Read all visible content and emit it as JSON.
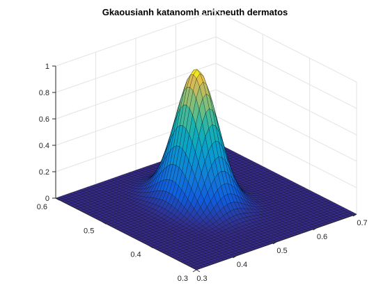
{
  "chart_data": {
    "type": "surface",
    "title": "Gkaousianh katanomh anixneuth dermatos",
    "xlabel": "",
    "ylabel": "",
    "zlabel": "",
    "x_range": [
      0.3,
      0.7
    ],
    "y_range": [
      0.3,
      0.6
    ],
    "z_range": [
      0,
      1
    ],
    "x_ticks": [
      "0.3",
      "0.4",
      "0.5",
      "0.6",
      "0.7"
    ],
    "x_tick_values": [
      0.3,
      0.4,
      0.5,
      0.6,
      0.7
    ],
    "y_ticks": [
      "0.3",
      "0.4",
      "0.5",
      "0.6"
    ],
    "y_tick_values": [
      0.3,
      0.4,
      0.5,
      0.6
    ],
    "z_ticks": [
      "0",
      "0.2",
      "0.4",
      "0.6",
      "0.8",
      "1"
    ],
    "z_tick_values": [
      0,
      0.2,
      0.4,
      0.6,
      0.8,
      1
    ],
    "grid": true,
    "colormap": "parula",
    "surface": {
      "function": "gaussian",
      "peak": 1,
      "center_x": 0.5,
      "center_y": 0.47,
      "sigma_x": 0.035,
      "sigma_y": 0.035
    }
  }
}
